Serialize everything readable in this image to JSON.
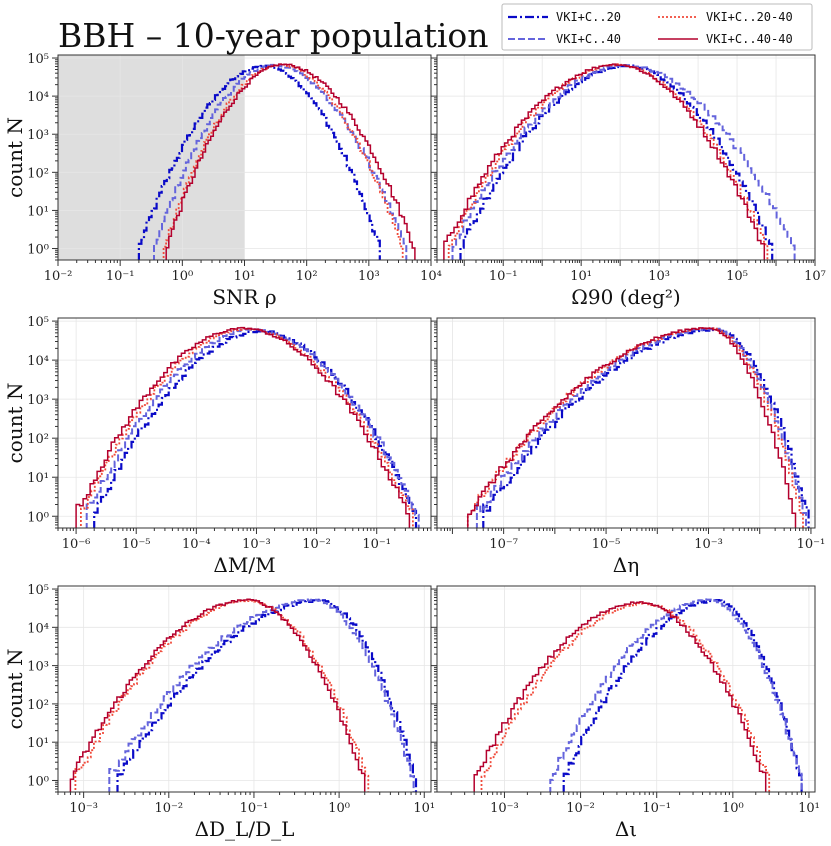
{
  "figure": {
    "title": "BBH – 10-year population"
  },
  "legend": {
    "placement": "top-right",
    "entries": [
      {
        "label": "VKI+C..20",
        "color": "#0a0ac8",
        "dash": "dashdot"
      },
      {
        "label": "VKI+C..20-40",
        "color": "#f04a3a",
        "dash": "dotted"
      },
      {
        "label": "VKI+C..40",
        "color": "#6464dc",
        "dash": "dashed"
      },
      {
        "label": "VKI+C..40-40",
        "color": "#b4002d",
        "dash": "solid"
      }
    ]
  },
  "chart_data": [
    {
      "type": "line",
      "xlabel": "SNR ρ",
      "ylabel": "count N",
      "xscale": "log",
      "yscale": "log",
      "xlim": [
        0.01,
        10000
      ],
      "ylim": [
        0.5,
        120000
      ],
      "xticks": [
        "10^-2",
        "10^-1",
        "10^0",
        "10^1",
        "10^2",
        "10^3",
        "10^4"
      ],
      "yticks": [
        "10^0",
        "10^1",
        "10^2",
        "10^3",
        "10^4",
        "10^5"
      ],
      "grid": true,
      "shaded_region": {
        "x": [
          0.01,
          10
        ]
      },
      "series": [
        {
          "name": "VKI+C..20",
          "peak_x": 22,
          "peak_y": 62000,
          "x_min": 0.2,
          "x_max": 1500
        },
        {
          "name": "VKI+C..40",
          "peak_x": 30,
          "peak_y": 65000,
          "x_min": 0.35,
          "x_max": 4000
        },
        {
          "name": "VKI+C..20-40",
          "peak_x": 38,
          "peak_y": 66000,
          "x_min": 0.5,
          "x_max": 3500
        },
        {
          "name": "VKI+C..40-40",
          "peak_x": 42,
          "peak_y": 68000,
          "x_min": 0.55,
          "x_max": 5500
        }
      ]
    },
    {
      "type": "line",
      "xlabel": "Ω90 (deg²)",
      "ylabel": "",
      "xscale": "log",
      "yscale": "log",
      "xlim": [
        0.002,
        10000000
      ],
      "ylim": [
        0.5,
        120000
      ],
      "xticks": [
        "10^-1",
        "10^1",
        "10^3",
        "10^5",
        "10^7"
      ],
      "yticks": [
        "10^0",
        "10^1",
        "10^2",
        "10^3",
        "10^4",
        "10^5"
      ],
      "grid": true,
      "series": [
        {
          "name": "VKI+C..20",
          "peak_x": 150,
          "peak_y": 62000,
          "x_min": 0.008,
          "x_max": 800000
        },
        {
          "name": "VKI+C..40",
          "peak_x": 140,
          "peak_y": 65000,
          "x_min": 0.005,
          "x_max": 3000000
        },
        {
          "name": "VKI+C..20-40",
          "peak_x": 90,
          "peak_y": 66000,
          "x_min": 0.004,
          "x_max": 600000
        },
        {
          "name": "VKI+C..40-40",
          "peak_x": 80,
          "peak_y": 68000,
          "x_min": 0.003,
          "x_max": 500000
        }
      ]
    },
    {
      "type": "line",
      "xlabel": "ΔM/M",
      "ylabel": "count N",
      "xscale": "log",
      "yscale": "log",
      "xlim": [
        5e-07,
        0.8
      ],
      "ylim": [
        0.5,
        120000
      ],
      "xticks": [
        "10^-6",
        "10^-5",
        "10^-4",
        "10^-3",
        "10^-2",
        "10^-1"
      ],
      "yticks": [
        "10^0",
        "10^1",
        "10^2",
        "10^3",
        "10^4",
        "10^5"
      ],
      "grid": true,
      "series": [
        {
          "name": "VKI+C..20",
          "peak_x": 0.0012,
          "peak_y": 55000,
          "x_min": 2e-06,
          "x_max": 0.45
        },
        {
          "name": "VKI+C..40",
          "peak_x": 0.0009,
          "peak_y": 60000,
          "x_min": 1.5e-06,
          "x_max": 0.5
        },
        {
          "name": "VKI+C..20-40",
          "peak_x": 0.0007,
          "peak_y": 63000,
          "x_min": 1.2e-06,
          "x_max": 0.4
        },
        {
          "name": "VKI+C..40-40",
          "peak_x": 0.0006,
          "peak_y": 66000,
          "x_min": 1e-06,
          "x_max": 0.35
        }
      ]
    },
    {
      "type": "line",
      "xlabel": "Δη",
      "ylabel": "",
      "xscale": "log",
      "yscale": "log",
      "xlim": [
        5e-09,
        0.12
      ],
      "ylim": [
        0.5,
        120000
      ],
      "xticks": [
        "10^-7",
        "10^-5",
        "10^-3",
        "10^-1"
      ],
      "yticks": [
        "10^0",
        "10^1",
        "10^2",
        "10^3",
        "10^4",
        "10^5"
      ],
      "grid": true,
      "series": [
        {
          "name": "VKI+C..20",
          "peak_x": 0.0014,
          "peak_y": 60000,
          "x_min": 4e-08,
          "x_max": 0.09
        },
        {
          "name": "VKI+C..40",
          "peak_x": 0.0012,
          "peak_y": 63000,
          "x_min": 3e-08,
          "x_max": 0.08
        },
        {
          "name": "VKI+C..20-40",
          "peak_x": 0.0011,
          "peak_y": 65000,
          "x_min": 2e-08,
          "x_max": 0.07
        },
        {
          "name": "VKI+C..40-40",
          "peak_x": 0.001,
          "peak_y": 67000,
          "x_min": 2e-08,
          "x_max": 0.05
        }
      ]
    },
    {
      "type": "line",
      "xlabel": "ΔD_L/D_L",
      "ylabel": "count N",
      "xscale": "log",
      "yscale": "log",
      "xlim": [
        0.0005,
        12
      ],
      "ylim": [
        0.5,
        120000
      ],
      "xticks": [
        "10^-3",
        "10^-2",
        "10^-1",
        "10^0",
        "10^1"
      ],
      "yticks": [
        "10^0",
        "10^1",
        "10^2",
        "10^3",
        "10^4",
        "10^5"
      ],
      "grid": true,
      "series": [
        {
          "name": "VKI+C..20",
          "peak_x": 0.6,
          "peak_y": 50000,
          "x_min": 0.0025,
          "x_max": 8
        },
        {
          "name": "VKI+C..40",
          "peak_x": 0.5,
          "peak_y": 52000,
          "x_min": 0.002,
          "x_max": 7.5
        },
        {
          "name": "VKI+C..20-40",
          "peak_x": 0.09,
          "peak_y": 50000,
          "x_min": 0.0008,
          "x_max": 2.2
        },
        {
          "name": "VKI+C..40-40",
          "peak_x": 0.085,
          "peak_y": 52000,
          "x_min": 0.0007,
          "x_max": 2
        }
      ]
    },
    {
      "type": "line",
      "xlabel": "Δι",
      "ylabel": "",
      "xscale": "log",
      "yscale": "log",
      "xlim": [
        0.00013,
        12
      ],
      "ylim": [
        0.5,
        120000
      ],
      "xticks": [
        "10^-3",
        "10^-2",
        "10^-1",
        "10^0",
        "10^1"
      ],
      "yticks": [
        "10^0",
        "10^1",
        "10^2",
        "10^3",
        "10^4",
        "10^5"
      ],
      "grid": true,
      "series": [
        {
          "name": "VKI+C..20",
          "peak_x": 0.6,
          "peak_y": 50000,
          "x_min": 0.006,
          "x_max": 8
        },
        {
          "name": "VKI+C..40",
          "peak_x": 0.5,
          "peak_y": 52000,
          "x_min": 0.004,
          "x_max": 8
        },
        {
          "name": "VKI+C..20-40",
          "peak_x": 0.07,
          "peak_y": 42000,
          "x_min": 0.0005,
          "x_max": 3
        },
        {
          "name": "VKI+C..40-40",
          "peak_x": 0.06,
          "peak_y": 45000,
          "x_min": 0.0004,
          "x_max": 2.7
        }
      ]
    }
  ]
}
